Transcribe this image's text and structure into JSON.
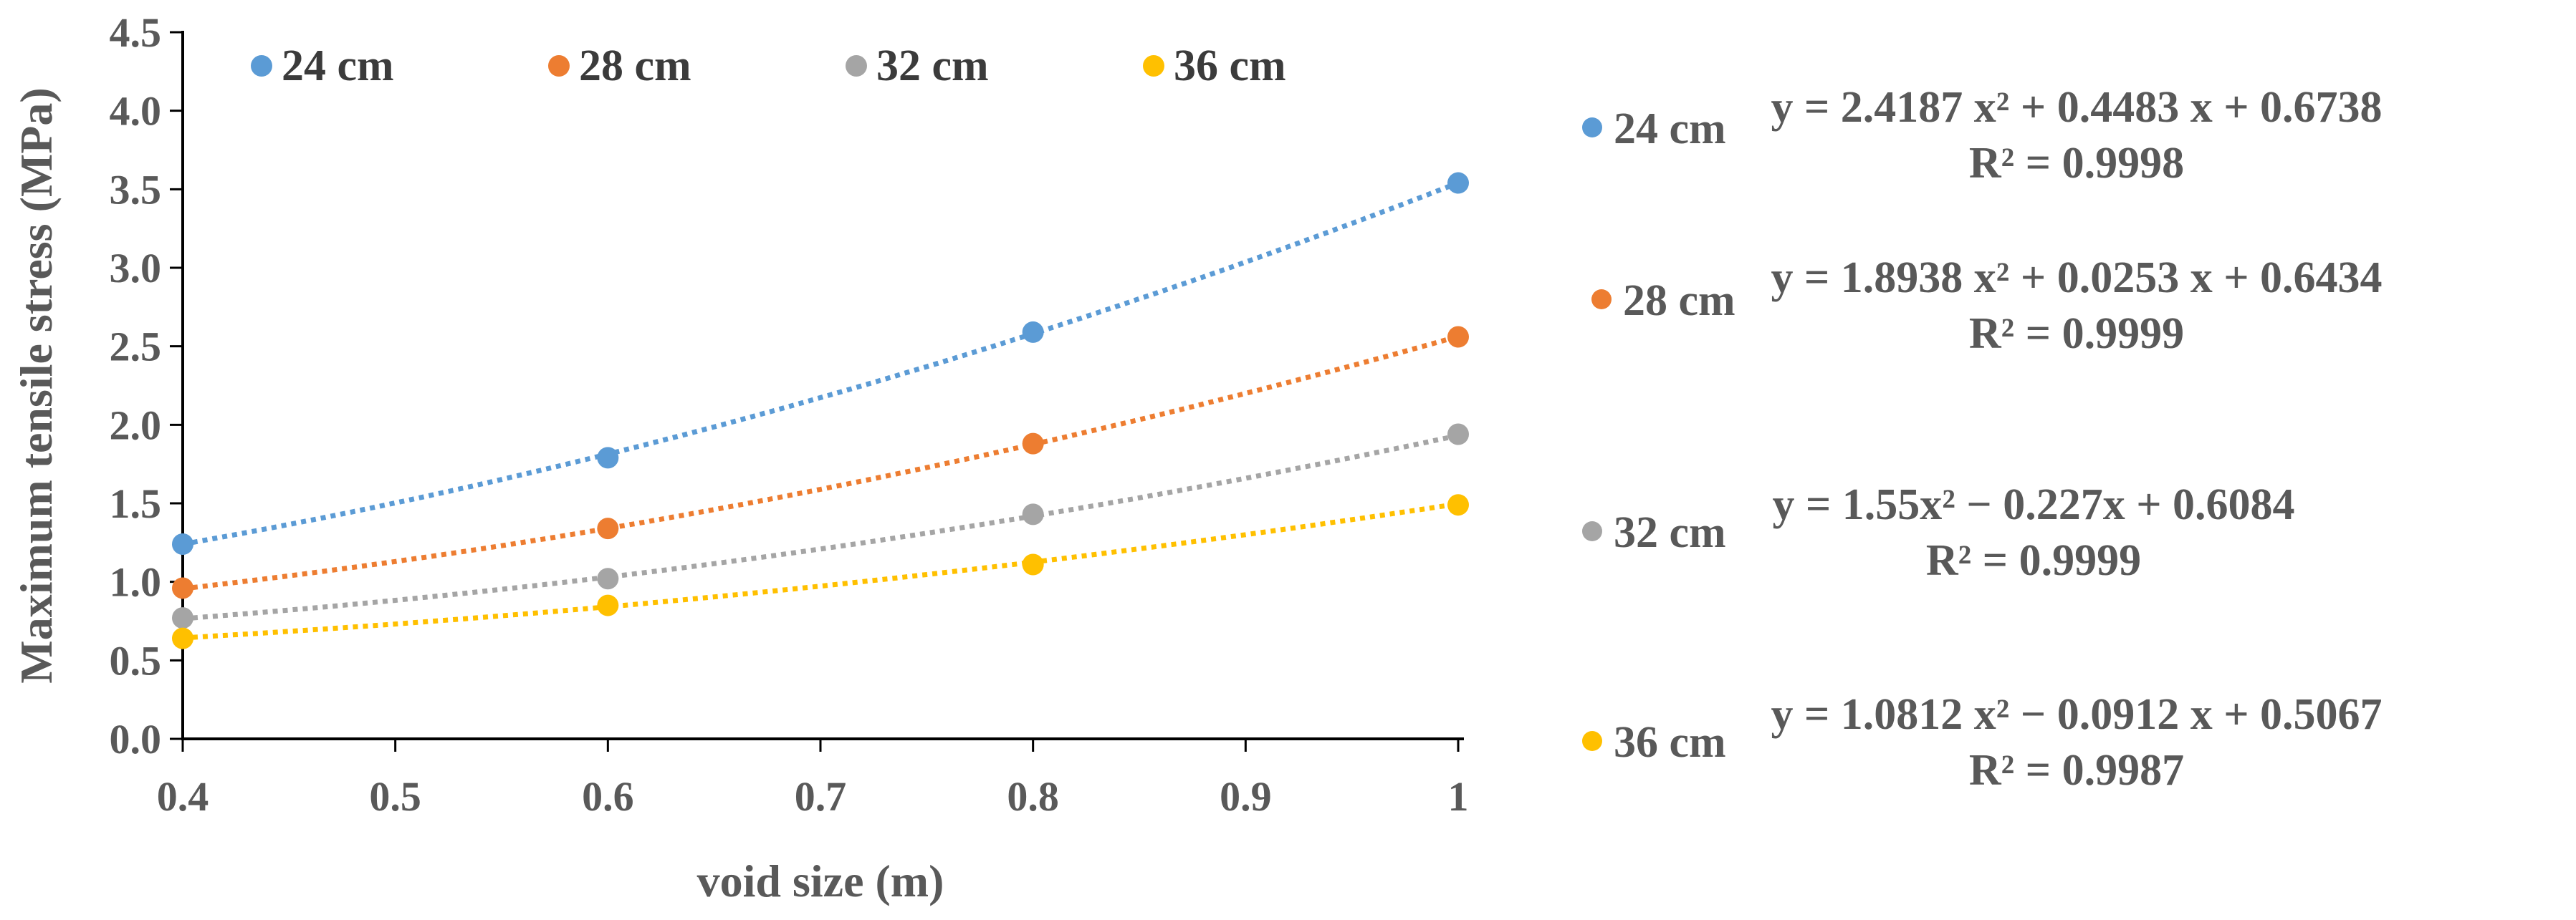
{
  "chart_data": {
    "type": "scatter",
    "title": "",
    "xlabel": "void size (m)",
    "ylabel": "Maximum tensile stress (MPa)",
    "xlim": [
      0.4,
      1.0
    ],
    "ylim": [
      0.0,
      4.5
    ],
    "xticks": [
      0.4,
      0.5,
      0.6,
      0.7,
      0.8,
      0.9,
      1.0
    ],
    "xtick_labels": [
      "0.4",
      "0.5",
      "0.6",
      "0.7",
      "0.8",
      "0.9",
      "1"
    ],
    "yticks": [
      0,
      0.5,
      1,
      1.5,
      2,
      2.5,
      3,
      3.5,
      4,
      4.5
    ],
    "ytick_labels": [
      "0.0",
      "0.5",
      "1.0",
      "1.5",
      "2.0",
      "2.5",
      "3.0",
      "3.5",
      "4.0",
      "4.5"
    ],
    "grid": false,
    "legend_position": "top",
    "x": [
      0.4,
      0.6,
      0.8,
      1.0
    ],
    "series": [
      {
        "name": "24 cm",
        "color": "#5B9BD5",
        "values": [
          1.24,
          1.79,
          2.59,
          3.54
        ],
        "trendline": {
          "equation": "y = 2.4187 x² + 0.4483 x + 0.6738",
          "r2": "R² = 0.9998",
          "coeffs": [
            2.4187,
            0.4483,
            0.6738
          ]
        }
      },
      {
        "name": "28 cm",
        "color": "#ED7D31",
        "values": [
          0.96,
          1.34,
          1.88,
          2.56
        ],
        "trendline": {
          "equation": "y = 1.8938 x² + 0.0253 x + 0.6434",
          "r2": "R² = 0.9999",
          "coeffs": [
            1.8938,
            0.0253,
            0.6434
          ]
        }
      },
      {
        "name": "32 cm",
        "color": "#A5A5A5",
        "values": [
          0.77,
          1.02,
          1.43,
          1.94
        ],
        "trendline": {
          "equation": "y = 1.55x² − 0.227x + 0.6084",
          "r2": "R² = 0.9999",
          "coeffs": [
            1.55,
            -0.227,
            0.6084
          ]
        }
      },
      {
        "name": "36 cm",
        "color": "#FFC000",
        "values": [
          0.64,
          0.85,
          1.11,
          1.49
        ],
        "trendline": {
          "equation": "y = 1.0812 x² − 0.0912 x + 0.5067",
          "r2": "R² = 0.9987",
          "coeffs": [
            1.0812,
            -0.0912,
            0.5067
          ]
        }
      }
    ]
  }
}
